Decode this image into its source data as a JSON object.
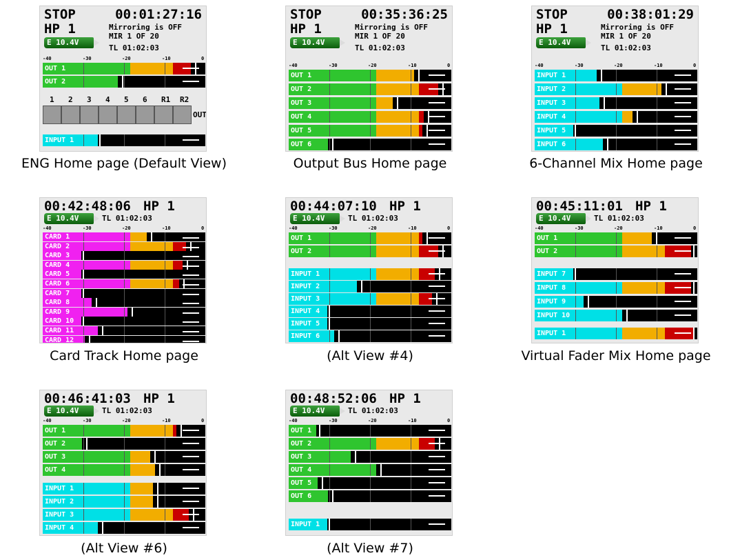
{
  "scale_labels": [
    "-40",
    "-30",
    "-20",
    "-10",
    "0"
  ],
  "battery": "E 10.4V",
  "tl": "TL 01:02:03",
  "panels": [
    {
      "key": "eng",
      "caption": "ENG Home page (Default View)",
      "status": "STOP",
      "timecode": "00:01:27:16",
      "headphone": "HP 1",
      "mirroring": "Mirroring is OFF",
      "mir": "MIR 1 OF 20",
      "meters": [
        {
          "label": "OUT 1",
          "level": 0.91
        },
        {
          "label": "OUT 2",
          "level": 0.46
        }
      ],
      "fader_labels": [
        "1",
        "2",
        "3",
        "4",
        "5",
        "6",
        "R1",
        "R2"
      ],
      "fader_side_label": "OUT",
      "input_meter": {
        "label": "INPUT 1",
        "level": 0.0
      }
    },
    {
      "key": "outbus",
      "caption": "Output Bus Home page",
      "status": "STOP",
      "timecode": "00:35:36:25",
      "headphone": "HP 1",
      "mirroring": "Mirroring is OFF",
      "mir": "MIR 1 OF 20",
      "meters": [
        {
          "label": "OUT 1",
          "level": 0.77
        },
        {
          "label": "OUT 2",
          "level": 0.92
        },
        {
          "label": "OUT 3",
          "level": 0.64
        },
        {
          "label": "OUT 4",
          "level": 0.83
        },
        {
          "label": "OUT 5",
          "level": 0.82
        },
        {
          "label": "OUT 6",
          "level": 0.24
        }
      ]
    },
    {
      "key": "mix6",
      "caption": "6-Channel Mix Home page",
      "status": "STOP",
      "timecode": "00:38:01:29",
      "headphone": "HP 1",
      "mirroring": "Mirroring is OFF",
      "mir": "MIR 1 OF 20",
      "meters": [
        {
          "label": "INPUT 1",
          "level": 0.38
        },
        {
          "label": "INPUT 2",
          "level": 0.78
        },
        {
          "label": "INPUT 3",
          "level": 0.4
        },
        {
          "label": "INPUT 4",
          "level": 0.6
        },
        {
          "label": "INPUT 5",
          "level": 0.1
        },
        {
          "label": "INPUT 6",
          "level": 0.42
        }
      ]
    },
    {
      "key": "card",
      "caption": "Card Track Home page",
      "timecode": "00:42:48:06",
      "headphone": "HP 1",
      "meters": [
        {
          "label": "CARD 1",
          "level": 0.64
        },
        {
          "label": "CARD 2",
          "level": 0.88
        },
        {
          "label": "CARD 3",
          "level": 0.2
        },
        {
          "label": "CARD 4",
          "level": 0.86
        },
        {
          "label": "CARD 5",
          "level": 0.1
        },
        {
          "label": "CARD 6",
          "level": 0.84
        },
        {
          "label": "CARD 7",
          "level": 0.1
        },
        {
          "label": "CARD 8",
          "level": 0.3
        },
        {
          "label": "CARD 9",
          "level": 0.52
        },
        {
          "label": "CARD 10",
          "level": 0.1
        },
        {
          "label": "CARD 11",
          "level": 0.34
        },
        {
          "label": "CARD 12",
          "level": 0.26
        }
      ]
    },
    {
      "key": "alt4",
      "caption": "(Alt View #4)",
      "timecode": "00:44:07:10",
      "headphone": "HP 1",
      "meters": [
        {
          "label": "OUT 1",
          "level": 0.82
        },
        {
          "label": "OUT 2",
          "level": 0.92
        }
      ],
      "input_meters": [
        {
          "label": "INPUT 1",
          "level": 0.9
        },
        {
          "label": "INPUT 2",
          "level": 0.42
        },
        {
          "label": "INPUT 3",
          "level": 0.88
        },
        {
          "label": "INPUT 4",
          "level": 0.12
        },
        {
          "label": "INPUT 5",
          "level": 0.12
        },
        {
          "label": "INPUT 6",
          "level": 0.28
        }
      ]
    },
    {
      "key": "vfader",
      "caption": "Virtual Fader Mix Home page",
      "timecode": "00:45:11:01",
      "headphone": "HP 1",
      "meters": [
        {
          "label": "OUT 1",
          "level": 0.72
        },
        {
          "label": "OUT 2",
          "level": 0.96
        }
      ],
      "input_meters": [
        {
          "label": "INPUT 7",
          "level": 0.2
        },
        {
          "label": "INPUT 8",
          "level": 0.96
        },
        {
          "label": "INPUT 9",
          "level": 0.3
        },
        {
          "label": "INPUT 10",
          "level": 0.54
        }
      ],
      "bottom_meter": {
        "label": "INPUT 1",
        "level": 0.98
      }
    },
    {
      "key": "alt6",
      "caption": "(Alt View #6)",
      "timecode": "00:46:41:03",
      "headphone": "HP 1",
      "meters": [
        {
          "label": "OUT 1",
          "level": 0.82
        },
        {
          "label": "OUT 2",
          "level": 0.24
        },
        {
          "label": "OUT 3",
          "level": 0.66
        },
        {
          "label": "OUT 4",
          "level": 0.69
        }
      ],
      "input_meters": [
        {
          "label": "INPUT 1",
          "level": 0.68
        },
        {
          "label": "INPUT 2",
          "level": 0.68
        },
        {
          "label": "INPUT 3",
          "level": 0.9
        },
        {
          "label": "INPUT 4",
          "level": 0.34
        }
      ]
    },
    {
      "key": "alt7",
      "caption": "(Alt View #7)",
      "timecode": "00:48:52:06",
      "headphone": "HP 1",
      "meters": [
        {
          "label": "OUT 1",
          "level": 0.16
        },
        {
          "label": "OUT 2",
          "level": 0.9
        },
        {
          "label": "OUT 3",
          "level": 0.38
        },
        {
          "label": "OUT 4",
          "level": 0.54
        },
        {
          "label": "OUT 5",
          "level": 0.18
        },
        {
          "label": "OUT 6",
          "level": 0.24
        }
      ],
      "input_meter": {
        "label": "INPUT 1",
        "level": 0.0
      }
    }
  ]
}
